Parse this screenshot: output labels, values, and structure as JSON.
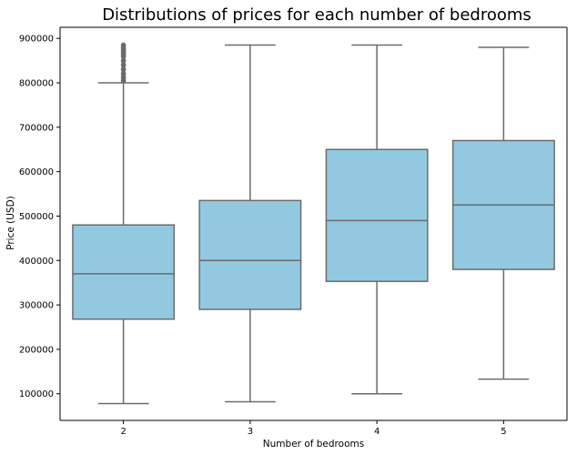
{
  "chart_data": {
    "type": "box",
    "title": "Distributions of prices for each number of bedrooms",
    "xlabel": "Number of bedrooms",
    "ylabel": "Price (USD)",
    "ylim": [
      40000,
      925000
    ],
    "yticks": [
      100000,
      200000,
      300000,
      400000,
      500000,
      600000,
      700000,
      800000,
      900000
    ],
    "categories": [
      "2",
      "3",
      "4",
      "5"
    ],
    "boxes": [
      {
        "category": "2",
        "whisker_low": 78000,
        "q1": 268000,
        "median": 370000,
        "q3": 480000,
        "whisker_high": 800000,
        "outliers": [
          805000,
          812000,
          820000,
          830000,
          840000,
          850000,
          860000,
          866000,
          872000,
          878000,
          884000
        ]
      },
      {
        "category": "3",
        "whisker_low": 82000,
        "q1": 290000,
        "median": 400000,
        "q3": 535000,
        "whisker_high": 885000,
        "outliers": []
      },
      {
        "category": "4",
        "whisker_low": 100000,
        "q1": 353000,
        "median": 490000,
        "q3": 650000,
        "whisker_high": 885000,
        "outliers": []
      },
      {
        "category": "5",
        "whisker_low": 133000,
        "q1": 380000,
        "median": 525000,
        "q3": 670000,
        "whisker_high": 880000,
        "outliers": []
      }
    ],
    "box_color": "#92c9e0",
    "line_color": "#6b6b6b",
    "grid": false,
    "legend": "none"
  }
}
